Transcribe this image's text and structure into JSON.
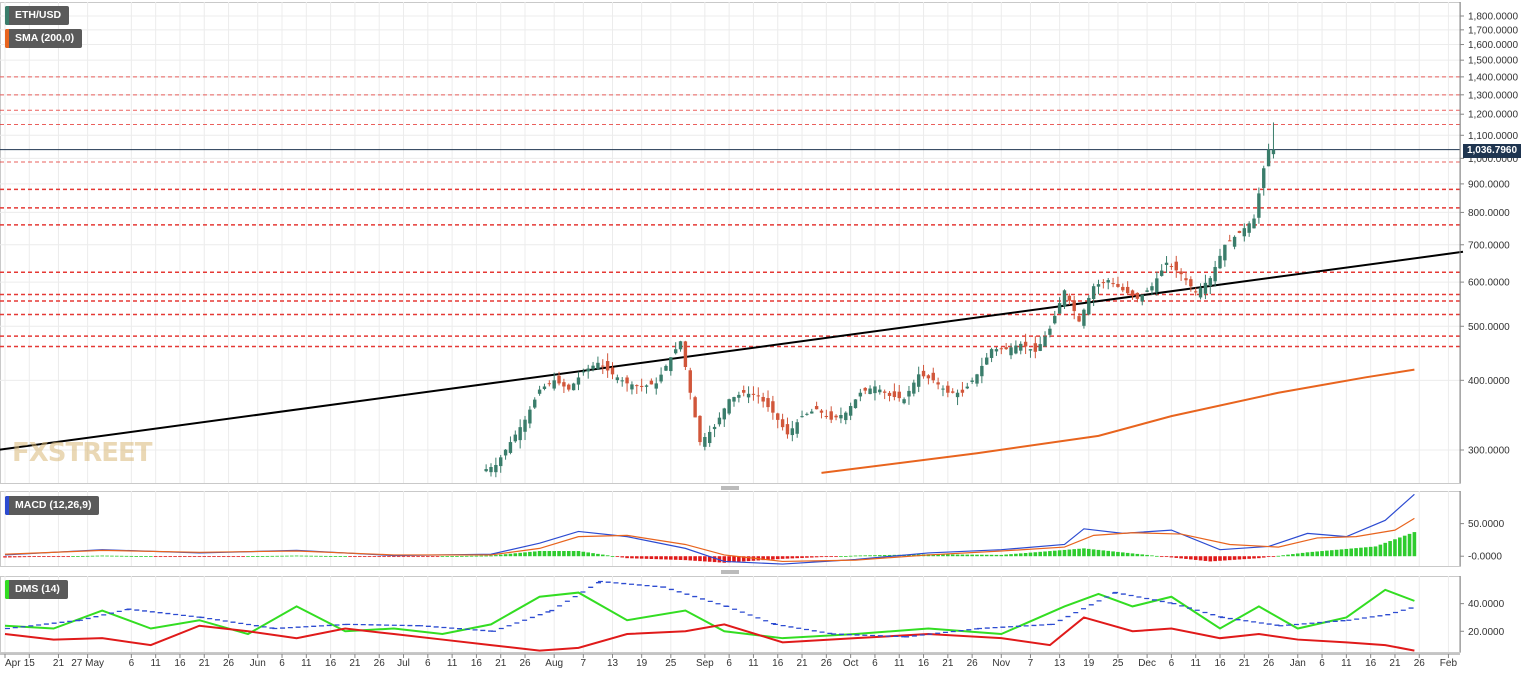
{
  "indicators": {
    "symbol": "ETH/USD",
    "sma": "SMA (200,0)",
    "macd": "MACD (12,26,9)",
    "dms": "DMS (14)"
  },
  "watermark": "FXSTREET",
  "current_price_label": "1,036.7960",
  "colors": {
    "bull": "#3a7d6b",
    "bear": "#d1563a",
    "sma": "#e8641e",
    "resistance": "#e53935",
    "trendline": "#000000",
    "macd_line": "#2c4bd1",
    "signal_line": "#e8641e",
    "hist_pos": "#2ecc2e",
    "hist_neg": "#e01a1a",
    "di_plus": "#33dd22",
    "di_minus": "#e01a1a",
    "adx": "#2c4bd1"
  },
  "chart_data": [
    {
      "type": "candlestick",
      "title": "ETH/USD",
      "scale": "log",
      "ylim": [
        275,
        1900
      ],
      "y_ticks": [
        "1,800.0000",
        "1,700.0000",
        "1,600.0000",
        "1,500.0000",
        "1,400.0000",
        "1,300.0000",
        "1,200.0000",
        "1,100.0000",
        "1,000.0000",
        "900.0000",
        "800.0000",
        "700.0000",
        "600.0000",
        "500.0000",
        "400.0000",
        "300.0000"
      ],
      "y_tick_values": [
        1800,
        1700,
        1600,
        1500,
        1400,
        1300,
        1200,
        1100,
        1000,
        900,
        800,
        700,
        600,
        500,
        400,
        300
      ],
      "x_ticks": [
        "Apr",
        "15",
        "21",
        "27 May",
        "6",
        "11",
        "16",
        "21",
        "26",
        "Jun",
        "6",
        "11",
        "16",
        "21",
        "26",
        "Jul",
        "6",
        "11",
        "16",
        "21",
        "26",
        "Aug",
        "7",
        "13",
        "19",
        "25",
        "Sep",
        "6",
        "11",
        "16",
        "21",
        "26",
        "Oct",
        "6",
        "11",
        "16",
        "21",
        "26",
        "Nov",
        "7",
        "13",
        "19",
        "25",
        "Dec",
        "6",
        "11",
        "16",
        "21",
        "26",
        "Jan",
        "6",
        "11",
        "16",
        "21",
        "26",
        "Feb"
      ],
      "x_tick_day_index": [
        0,
        5,
        11,
        17,
        26,
        31,
        36,
        41,
        46,
        52,
        57,
        62,
        67,
        72,
        77,
        82,
        87,
        92,
        97,
        102,
        107,
        113,
        119,
        125,
        131,
        137,
        144,
        149,
        154,
        159,
        164,
        169,
        174,
        179,
        184,
        189,
        194,
        199,
        205,
        211,
        217,
        223,
        229,
        235,
        240,
        245,
        250,
        255,
        260,
        266,
        271,
        276,
        281,
        286,
        291,
        297
      ],
      "first_date": "2017-04-10",
      "current_price": 1036.796,
      "resistance_levels": [
        1400,
        1300,
        1220,
        1150,
        985,
        880,
        815,
        760,
        625,
        570,
        555,
        525,
        480,
        460
      ],
      "trendline": {
        "start": {
          "day_index": -4,
          "price": 298
        },
        "end": {
          "day_index": 300,
          "price": 680
        }
      },
      "sma_200": [
        {
          "day_index": 168,
          "value": 273
        },
        {
          "day_index": 200,
          "value": 296
        },
        {
          "day_index": 225,
          "value": 318
        },
        {
          "day_index": 240,
          "value": 345
        },
        {
          "day_index": 262,
          "value": 380
        },
        {
          "day_index": 280,
          "value": 405
        },
        {
          "day_index": 290,
          "value": 418
        }
      ],
      "price_path": [
        {
          "day_index": 99,
          "price": 275
        },
        {
          "day_index": 102,
          "price": 282
        },
        {
          "day_index": 105,
          "price": 310
        },
        {
          "day_index": 108,
          "price": 340
        },
        {
          "day_index": 111,
          "price": 385
        },
        {
          "day_index": 114,
          "price": 400
        },
        {
          "day_index": 117,
          "price": 385
        },
        {
          "day_index": 120,
          "price": 415
        },
        {
          "day_index": 123,
          "price": 430
        },
        {
          "day_index": 126,
          "price": 410
        },
        {
          "day_index": 129,
          "price": 395
        },
        {
          "day_index": 132,
          "price": 390
        },
        {
          "day_index": 135,
          "price": 395
        },
        {
          "day_index": 138,
          "price": 440
        },
        {
          "day_index": 140,
          "price": 470
        },
        {
          "day_index": 142,
          "price": 380
        },
        {
          "day_index": 144,
          "price": 310
        },
        {
          "day_index": 147,
          "price": 330
        },
        {
          "day_index": 150,
          "price": 370
        },
        {
          "day_index": 153,
          "price": 380
        },
        {
          "day_index": 156,
          "price": 375
        },
        {
          "day_index": 159,
          "price": 350
        },
        {
          "day_index": 162,
          "price": 320
        },
        {
          "day_index": 165,
          "price": 345
        },
        {
          "day_index": 168,
          "price": 355
        },
        {
          "day_index": 171,
          "price": 340
        },
        {
          "day_index": 174,
          "price": 350
        },
        {
          "day_index": 177,
          "price": 380
        },
        {
          "day_index": 180,
          "price": 390
        },
        {
          "day_index": 183,
          "price": 375
        },
        {
          "day_index": 186,
          "price": 370
        },
        {
          "day_index": 189,
          "price": 410
        },
        {
          "day_index": 192,
          "price": 400
        },
        {
          "day_index": 195,
          "price": 380
        },
        {
          "day_index": 198,
          "price": 380
        },
        {
          "day_index": 201,
          "price": 410
        },
        {
          "day_index": 204,
          "price": 455
        },
        {
          "day_index": 207,
          "price": 455
        },
        {
          "day_index": 210,
          "price": 465
        },
        {
          "day_index": 213,
          "price": 450
        },
        {
          "day_index": 216,
          "price": 495
        },
        {
          "day_index": 219,
          "price": 580
        },
        {
          "day_index": 222,
          "price": 510
        },
        {
          "day_index": 225,
          "price": 590
        },
        {
          "day_index": 228,
          "price": 605
        },
        {
          "day_index": 231,
          "price": 580
        },
        {
          "day_index": 234,
          "price": 560
        },
        {
          "day_index": 237,
          "price": 590
        },
        {
          "day_index": 240,
          "price": 650
        },
        {
          "day_index": 243,
          "price": 620
        },
        {
          "day_index": 246,
          "price": 575
        },
        {
          "day_index": 249,
          "price": 610
        },
        {
          "day_index": 252,
          "price": 700
        },
        {
          "day_index": 255,
          "price": 735
        },
        {
          "day_index": 258,
          "price": 780
        },
        {
          "day_index": 260,
          "price": 960
        },
        {
          "day_index": 261,
          "price": 1036.8
        }
      ]
    },
    {
      "type": "line",
      "title": "MACD (12,26,9)",
      "y_ticks": [
        "50.0000",
        "-0.0000"
      ],
      "y_tick_values": [
        50,
        0
      ],
      "ylim": [
        -15,
        100
      ],
      "series": [
        {
          "name": "MACD",
          "points": [
            [
              0,
              2
            ],
            [
              20,
              10
            ],
            [
              40,
              5
            ],
            [
              60,
              9
            ],
            [
              80,
              1
            ],
            [
              100,
              3
            ],
            [
              110,
              20
            ],
            [
              118,
              38
            ],
            [
              128,
              30
            ],
            [
              140,
              12
            ],
            [
              148,
              -8
            ],
            [
              160,
              -12
            ],
            [
              175,
              -5
            ],
            [
              190,
              5
            ],
            [
              205,
              10
            ],
            [
              218,
              18
            ],
            [
              222,
              42
            ],
            [
              230,
              35
            ],
            [
              240,
              40
            ],
            [
              250,
              10
            ],
            [
              260,
              15
            ],
            [
              268,
              35
            ],
            [
              276,
              30
            ],
            [
              284,
              55
            ],
            [
              290,
              95
            ]
          ]
        },
        {
          "name": "Signal",
          "points": [
            [
              0,
              3
            ],
            [
              20,
              9
            ],
            [
              40,
              6
            ],
            [
              60,
              8
            ],
            [
              80,
              2
            ],
            [
              100,
              2
            ],
            [
              110,
              12
            ],
            [
              118,
              30
            ],
            [
              128,
              32
            ],
            [
              140,
              18
            ],
            [
              148,
              2
            ],
            [
              160,
              -8
            ],
            [
              175,
              -6
            ],
            [
              190,
              2
            ],
            [
              205,
              8
            ],
            [
              218,
              14
            ],
            [
              224,
              32
            ],
            [
              232,
              36
            ],
            [
              242,
              34
            ],
            [
              252,
              18
            ],
            [
              262,
              14
            ],
            [
              270,
              28
            ],
            [
              278,
              30
            ],
            [
              286,
              40
            ],
            [
              290,
              58
            ]
          ]
        }
      ],
      "histogram": [
        {
          "day_index": 0,
          "value": -2
        },
        {
          "day_index": 20,
          "value": 1
        },
        {
          "day_index": 40,
          "value": -1
        },
        {
          "day_index": 60,
          "value": 1
        },
        {
          "day_index": 80,
          "value": -1
        },
        {
          "day_index": 100,
          "value": 1
        },
        {
          "day_index": 110,
          "value": 8
        },
        {
          "day_index": 118,
          "value": 8
        },
        {
          "day_index": 128,
          "value": -3
        },
        {
          "day_index": 140,
          "value": -6
        },
        {
          "day_index": 148,
          "value": -10
        },
        {
          "day_index": 160,
          "value": -4
        },
        {
          "day_index": 175,
          "value": 1
        },
        {
          "day_index": 190,
          "value": 3
        },
        {
          "day_index": 205,
          "value": 2
        },
        {
          "day_index": 222,
          "value": 12
        },
        {
          "day_index": 235,
          "value": 2
        },
        {
          "day_index": 248,
          "value": -8
        },
        {
          "day_index": 258,
          "value": -3
        },
        {
          "day_index": 268,
          "value": 6
        },
        {
          "day_index": 282,
          "value": 15
        },
        {
          "day_index": 290,
          "value": 37
        }
      ]
    },
    {
      "type": "line",
      "title": "DMS (14)",
      "y_ticks": [
        "40.0000",
        "20.0000"
      ],
      "y_tick_values": [
        40,
        20
      ],
      "ylim": [
        5,
        60
      ],
      "series": [
        {
          "name": "+DI",
          "points": [
            [
              0,
              24
            ],
            [
              10,
              22
            ],
            [
              20,
              35
            ],
            [
              30,
              22
            ],
            [
              40,
              28
            ],
            [
              50,
              18
            ],
            [
              60,
              38
            ],
            [
              70,
              20
            ],
            [
              80,
              22
            ],
            [
              90,
              18
            ],
            [
              100,
              25
            ],
            [
              110,
              45
            ],
            [
              118,
              48
            ],
            [
              128,
              28
            ],
            [
              140,
              35
            ],
            [
              148,
              20
            ],
            [
              160,
              15
            ],
            [
              175,
              18
            ],
            [
              190,
              22
            ],
            [
              205,
              18
            ],
            [
              218,
              38
            ],
            [
              225,
              47
            ],
            [
              232,
              38
            ],
            [
              240,
              45
            ],
            [
              250,
              22
            ],
            [
              258,
              38
            ],
            [
              266,
              22
            ],
            [
              276,
              30
            ],
            [
              284,
              50
            ],
            [
              290,
              42
            ]
          ]
        },
        {
          "name": "-DI",
          "points": [
            [
              0,
              18
            ],
            [
              10,
              14
            ],
            [
              20,
              15
            ],
            [
              30,
              10
            ],
            [
              40,
              24
            ],
            [
              50,
              20
            ],
            [
              60,
              15
            ],
            [
              70,
              22
            ],
            [
              80,
              18
            ],
            [
              90,
              14
            ],
            [
              100,
              10
            ],
            [
              110,
              6
            ],
            [
              118,
              8
            ],
            [
              128,
              18
            ],
            [
              140,
              20
            ],
            [
              148,
              25
            ],
            [
              160,
              12
            ],
            [
              175,
              15
            ],
            [
              190,
              18
            ],
            [
              205,
              15
            ],
            [
              215,
              10
            ],
            [
              222,
              30
            ],
            [
              232,
              20
            ],
            [
              240,
              22
            ],
            [
              250,
              15
            ],
            [
              258,
              18
            ],
            [
              266,
              14
            ],
            [
              276,
              12
            ],
            [
              284,
              10
            ],
            [
              290,
              6
            ]
          ]
        },
        {
          "name": "ADX",
          "points": [
            [
              0,
              22
            ],
            [
              15,
              28
            ],
            [
              25,
              36
            ],
            [
              40,
              30
            ],
            [
              55,
              22
            ],
            [
              70,
              25
            ],
            [
              85,
              24
            ],
            [
              100,
              20
            ],
            [
              112,
              35
            ],
            [
              122,
              56
            ],
            [
              135,
              52
            ],
            [
              148,
              38
            ],
            [
              158,
              25
            ],
            [
              170,
              18
            ],
            [
              185,
              16
            ],
            [
              200,
              22
            ],
            [
              215,
              25
            ],
            [
              228,
              48
            ],
            [
              240,
              40
            ],
            [
              250,
              30
            ],
            [
              262,
              24
            ],
            [
              276,
              28
            ],
            [
              284,
              32
            ],
            [
              290,
              38
            ]
          ]
        }
      ]
    }
  ]
}
